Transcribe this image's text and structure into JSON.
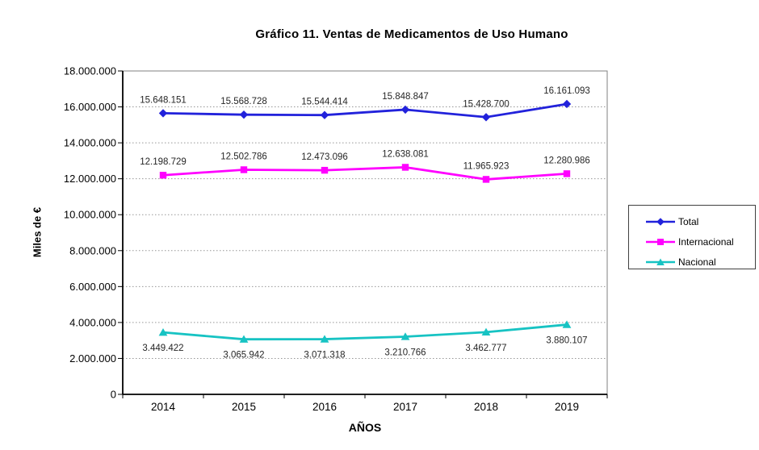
{
  "title": "Gráfico 11. Ventas de Medicamentos de Uso Humano",
  "chart_data": {
    "type": "line",
    "title": "Gráfico 11. Ventas de Medicamentos de Uso Humano",
    "xlabel": "AÑOS",
    "ylabel": "Miles de €",
    "categories": [
      "2014",
      "2015",
      "2016",
      "2017",
      "2018",
      "2019"
    ],
    "ylim": [
      0,
      18000000
    ],
    "ytick_step": 2000000,
    "ytick_labels": [
      "0",
      "2.000.000",
      "4.000.000",
      "6.000.000",
      "8.000.000",
      "10.000.000",
      "12.000.000",
      "14.000.000",
      "16.000.000",
      "18.000.000"
    ],
    "grid": "horizontal-dotted",
    "legend_position": "right",
    "series": [
      {
        "name": "Total",
        "color": "#2222db",
        "marker": "diamond",
        "label_position": "above",
        "values": [
          15648151,
          15568728,
          15544414,
          15848847,
          15428700,
          16161093
        ],
        "labels": [
          "15.648.151",
          "15.568.728",
          "15.544.414",
          "15.848.847",
          "15.428.700",
          "16.161.093"
        ]
      },
      {
        "name": "Internacional",
        "color": "#ff00ff",
        "marker": "square",
        "label_position": "above",
        "values": [
          12198729,
          12502786,
          12473096,
          12638081,
          11965923,
          12280986
        ],
        "labels": [
          "12.198.729",
          "12.502.786",
          "12.473.096",
          "12.638.081",
          "11.965.923",
          "12.280.986"
        ]
      },
      {
        "name": "Nacional",
        "color": "#17c3c3",
        "marker": "triangle",
        "label_position": "below",
        "values": [
          3449422,
          3065942,
          3071318,
          3210766,
          3462777,
          3880107
        ],
        "labels": [
          "3.449.422",
          "3.065.942",
          "3.071.318",
          "3.210.766",
          "3.462.777",
          "3.880.107"
        ]
      }
    ]
  }
}
